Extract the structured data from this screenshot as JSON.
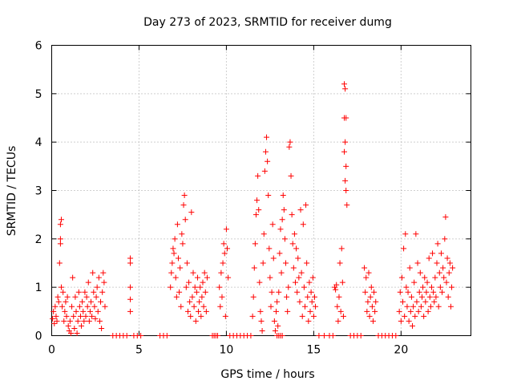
{
  "chart_data": {
    "type": "scatter",
    "title": "Day 273 of 2023, SRMTID for receiver dumg",
    "xlabel": "GPS time / hours",
    "ylabel": "SRMTID / TECUs",
    "xlim": [
      0,
      24
    ],
    "ylim": [
      0,
      6
    ],
    "xticks": [
      0,
      5,
      10,
      15,
      20
    ],
    "xtick_labels": [
      "0",
      "5",
      "10",
      "15",
      "20"
    ],
    "yticks": [
      0,
      1,
      2,
      3,
      4,
      5,
      6
    ],
    "ytick_labels": [
      "0",
      "1",
      "2",
      "3",
      "4",
      "5",
      "6"
    ],
    "grid": true,
    "marker": "plus",
    "series": [
      {
        "name": "SRMTID",
        "color": "#ff0000",
        "points": [
          [
            0.05,
            0.35
          ],
          [
            0.1,
            0.5
          ],
          [
            0.15,
            0.25
          ],
          [
            0.2,
            0.6
          ],
          [
            0.25,
            0.4
          ],
          [
            0.3,
            0.3
          ],
          [
            0.35,
            0.8
          ],
          [
            0.4,
            0.7
          ],
          [
            0.45,
            1.5
          ],
          [
            0.5,
            2.0
          ],
          [
            0.5,
            1.9
          ],
          [
            0.5,
            2.3
          ],
          [
            0.55,
            2.4
          ],
          [
            0.55,
            1.0
          ],
          [
            0.6,
            0.6
          ],
          [
            0.65,
            0.9
          ],
          [
            0.7,
            0.3
          ],
          [
            0.75,
            0.5
          ],
          [
            0.8,
            0.7
          ],
          [
            0.85,
            0.4
          ],
          [
            0.9,
            0.8
          ],
          [
            0.95,
            0.2
          ],
          [
            1.0,
            0.1
          ],
          [
            1.05,
            0.3
          ],
          [
            1.1,
            0.05
          ],
          [
            1.15,
            0.6
          ],
          [
            1.2,
            1.2
          ],
          [
            1.25,
            0.4
          ],
          [
            1.3,
            0.15
          ],
          [
            1.35,
            0.8
          ],
          [
            1.4,
            0.5
          ],
          [
            1.45,
            0.05
          ],
          [
            1.5,
            0.3
          ],
          [
            1.55,
            0.9
          ],
          [
            1.6,
            0.6
          ],
          [
            1.65,
            0.4
          ],
          [
            1.7,
            0.2
          ],
          [
            1.75,
            0.7
          ],
          [
            1.8,
            0.5
          ],
          [
            1.85,
            0.3
          ],
          [
            1.9,
            0.9
          ],
          [
            1.95,
            0.4
          ],
          [
            2.0,
            0.8
          ],
          [
            2.05,
            0.6
          ],
          [
            2.1,
            1.1
          ],
          [
            2.15,
            0.3
          ],
          [
            2.2,
            0.5
          ],
          [
            2.25,
            0.7
          ],
          [
            2.3,
            0.4
          ],
          [
            2.35,
            1.3
          ],
          [
            2.4,
            0.9
          ],
          [
            2.45,
            0.6
          ],
          [
            2.5,
            0.35
          ],
          [
            2.55,
            0.8
          ],
          [
            2.6,
            1.0
          ],
          [
            2.65,
            0.5
          ],
          [
            2.7,
            1.2
          ],
          [
            2.75,
            0.3
          ],
          [
            2.8,
            0.7
          ],
          [
            2.85,
            0.15
          ],
          [
            2.9,
            0.9
          ],
          [
            2.95,
            1.3
          ],
          [
            3.0,
            1.1
          ],
          [
            3.05,
            0.6
          ],
          [
            4.5,
            1.6
          ],
          [
            4.5,
            1.5
          ],
          [
            4.5,
            1.0
          ],
          [
            4.5,
            0.75
          ],
          [
            4.5,
            0.5
          ],
          [
            6.8,
            1.0
          ],
          [
            6.85,
            1.3
          ],
          [
            6.9,
            1.5
          ],
          [
            6.95,
            1.8
          ],
          [
            7.0,
            1.7
          ],
          [
            7.05,
            2.0
          ],
          [
            7.1,
            1.2
          ],
          [
            7.15,
            0.8
          ],
          [
            7.2,
            2.3
          ],
          [
            7.25,
            1.6
          ],
          [
            7.3,
            0.9
          ],
          [
            7.35,
            1.4
          ],
          [
            7.4,
            0.6
          ],
          [
            7.45,
            2.1
          ],
          [
            7.5,
            1.9
          ],
          [
            7.55,
            2.7
          ],
          [
            7.6,
            2.9
          ],
          [
            7.65,
            2.4
          ],
          [
            7.7,
            1.0
          ],
          [
            7.75,
            1.5
          ],
          [
            7.8,
            0.5
          ],
          [
            7.85,
            1.1
          ],
          [
            7.9,
            0.7
          ],
          [
            7.95,
            0.4
          ],
          [
            8.0,
            2.55
          ],
          [
            8.05,
            0.8
          ],
          [
            8.1,
            1.3
          ],
          [
            8.15,
            0.6
          ],
          [
            8.2,
            1.0
          ],
          [
            8.25,
            0.3
          ],
          [
            8.3,
            0.9
          ],
          [
            8.35,
            1.2
          ],
          [
            8.4,
            0.5
          ],
          [
            8.45,
            0.7
          ],
          [
            8.5,
            1.0
          ],
          [
            8.55,
            0.4
          ],
          [
            8.6,
            0.8
          ],
          [
            8.65,
            1.1
          ],
          [
            8.7,
            0.6
          ],
          [
            8.75,
            1.3
          ],
          [
            8.8,
            0.9
          ],
          [
            8.85,
            0.5
          ],
          [
            8.9,
            1.2
          ],
          [
            9.6,
            1.0
          ],
          [
            9.65,
            0.6
          ],
          [
            9.7,
            1.3
          ],
          [
            9.75,
            0.8
          ],
          [
            9.8,
            1.5
          ],
          [
            9.85,
            1.9
          ],
          [
            9.9,
            1.7
          ],
          [
            9.95,
            0.4
          ],
          [
            10.0,
            2.2
          ],
          [
            10.05,
            1.8
          ],
          [
            10.1,
            1.2
          ],
          [
            11.5,
            0.4
          ],
          [
            11.55,
            0.8
          ],
          [
            11.6,
            1.4
          ],
          [
            11.65,
            1.9
          ],
          [
            11.7,
            2.5
          ],
          [
            11.75,
            2.8
          ],
          [
            11.8,
            3.3
          ],
          [
            11.85,
            2.6
          ],
          [
            11.9,
            1.1
          ],
          [
            11.95,
            0.5
          ],
          [
            12.0,
            0.3
          ],
          [
            12.05,
            0.1
          ],
          [
            12.1,
            1.5
          ],
          [
            12.15,
            2.1
          ],
          [
            12.2,
            3.4
          ],
          [
            12.25,
            3.8
          ],
          [
            12.3,
            4.1
          ],
          [
            12.35,
            3.6
          ],
          [
            12.4,
            2.9
          ],
          [
            12.45,
            1.8
          ],
          [
            12.5,
            1.2
          ],
          [
            12.55,
            0.6
          ],
          [
            12.6,
            0.9
          ],
          [
            12.65,
            2.3
          ],
          [
            12.7,
            1.6
          ],
          [
            12.75,
            0.3
          ],
          [
            12.8,
            0.1
          ],
          [
            12.85,
            0.5
          ],
          [
            12.9,
            0.7
          ],
          [
            12.95,
            0.2
          ],
          [
            13.0,
            0.9
          ],
          [
            13.05,
            1.7
          ],
          [
            13.1,
            2.2
          ],
          [
            13.15,
            1.3
          ],
          [
            13.2,
            2.4
          ],
          [
            13.25,
            2.9
          ],
          [
            13.3,
            2.6
          ],
          [
            13.35,
            2.0
          ],
          [
            13.4,
            1.5
          ],
          [
            13.45,
            0.8
          ],
          [
            13.5,
            0.5
          ],
          [
            13.55,
            1.0
          ],
          [
            13.6,
            3.9
          ],
          [
            13.65,
            4.0
          ],
          [
            13.7,
            3.3
          ],
          [
            13.75,
            2.5
          ],
          [
            13.8,
            1.9
          ],
          [
            13.85,
            1.4
          ],
          [
            13.9,
            2.1
          ],
          [
            13.95,
            1.1
          ],
          [
            14.0,
            1.8
          ],
          [
            14.05,
            0.9
          ],
          [
            14.1,
            1.6
          ],
          [
            14.15,
            1.2
          ],
          [
            14.2,
            0.7
          ],
          [
            14.25,
            2.6
          ],
          [
            14.3,
            1.3
          ],
          [
            14.35,
            0.4
          ],
          [
            14.4,
            2.3
          ],
          [
            14.45,
            1.0
          ],
          [
            14.5,
            0.6
          ],
          [
            14.55,
            2.7
          ],
          [
            14.6,
            1.5
          ],
          [
            14.65,
            0.8
          ],
          [
            14.7,
            0.3
          ],
          [
            14.75,
            1.1
          ],
          [
            14.8,
            0.5
          ],
          [
            14.85,
            0.9
          ],
          [
            14.9,
            0.7
          ],
          [
            14.95,
            1.2
          ],
          [
            15.0,
            0.4
          ],
          [
            15.05,
            0.8
          ],
          [
            15.1,
            0.6
          ],
          [
            16.2,
            1.0
          ],
          [
            16.25,
            0.95
          ],
          [
            16.3,
            1.05
          ],
          [
            16.35,
            0.6
          ],
          [
            16.4,
            0.3
          ],
          [
            16.45,
            0.8
          ],
          [
            16.5,
            1.5
          ],
          [
            16.55,
            0.5
          ],
          [
            16.6,
            1.8
          ],
          [
            16.65,
            1.1
          ],
          [
            16.7,
            0.4
          ],
          [
            16.75,
            3.8
          ],
          [
            16.75,
            4.5
          ],
          [
            16.75,
            5.2
          ],
          [
            16.8,
            5.1
          ],
          [
            16.8,
            4.0
          ],
          [
            16.85,
            4.5
          ],
          [
            16.85,
            3.5
          ],
          [
            16.8,
            3.2
          ],
          [
            16.85,
            3.0
          ],
          [
            16.9,
            2.7
          ],
          [
            17.9,
            1.4
          ],
          [
            17.95,
            0.9
          ],
          [
            18.0,
            1.2
          ],
          [
            18.05,
            0.5
          ],
          [
            18.1,
            0.7
          ],
          [
            18.15,
            1.3
          ],
          [
            18.2,
            0.4
          ],
          [
            18.25,
            0.8
          ],
          [
            18.3,
            1.0
          ],
          [
            18.35,
            0.6
          ],
          [
            18.4,
            0.3
          ],
          [
            18.45,
            0.9
          ],
          [
            18.5,
            0.5
          ],
          [
            18.55,
            0.7
          ],
          [
            19.9,
            0.5
          ],
          [
            19.95,
            0.9
          ],
          [
            20.0,
            0.3
          ],
          [
            20.05,
            1.2
          ],
          [
            20.1,
            0.7
          ],
          [
            20.15,
            1.8
          ],
          [
            20.2,
            0.4
          ],
          [
            20.25,
            2.1
          ],
          [
            20.3,
            1.0
          ],
          [
            20.35,
            0.6
          ],
          [
            20.4,
            0.9
          ],
          [
            20.45,
            0.3
          ],
          [
            20.5,
            1.4
          ],
          [
            20.55,
            0.5
          ],
          [
            20.6,
            0.8
          ],
          [
            20.65,
            0.2
          ],
          [
            20.7,
            0.6
          ],
          [
            20.75,
            1.1
          ],
          [
            20.8,
            0.4
          ],
          [
            20.85,
            2.1
          ],
          [
            20.9,
            0.7
          ],
          [
            20.95,
            1.5
          ],
          [
            21.0,
            0.5
          ],
          [
            21.05,
            0.9
          ],
          [
            21.1,
            1.3
          ],
          [
            21.15,
            0.6
          ],
          [
            21.2,
            0.8
          ],
          [
            21.25,
            1.0
          ],
          [
            21.3,
            0.4
          ],
          [
            21.35,
            1.2
          ],
          [
            21.4,
            0.7
          ],
          [
            21.45,
            0.9
          ],
          [
            21.5,
            1.1
          ],
          [
            21.55,
            0.5
          ],
          [
            21.6,
            1.6
          ],
          [
            21.65,
            0.8
          ],
          [
            21.7,
            0.6
          ],
          [
            21.75,
            1.0
          ],
          [
            21.8,
            1.7
          ],
          [
            21.85,
            0.9
          ],
          [
            21.9,
            0.7
          ],
          [
            21.95,
            1.2
          ],
          [
            22.0,
            0.8
          ],
          [
            22.05,
            1.5
          ],
          [
            22.1,
            1.9
          ],
          [
            22.15,
            0.6
          ],
          [
            22.2,
            1.3
          ],
          [
            22.25,
            1.0
          ],
          [
            22.3,
            1.7
          ],
          [
            22.35,
            0.9
          ],
          [
            22.4,
            1.4
          ],
          [
            22.45,
            1.2
          ],
          [
            22.5,
            2.0
          ],
          [
            22.55,
            2.45
          ],
          [
            22.6,
            1.1
          ],
          [
            22.65,
            1.6
          ],
          [
            22.7,
            0.8
          ],
          [
            22.75,
            1.3
          ],
          [
            22.8,
            1.5
          ],
          [
            22.85,
            0.6
          ],
          [
            22.9,
            1.0
          ],
          [
            22.95,
            1.4
          ]
        ]
      }
    ],
    "zero_points_x": [
      3.5,
      3.7,
      3.9,
      4.1,
      4.3,
      4.7,
      4.9,
      5.1,
      6.2,
      6.4,
      6.6,
      9.2,
      9.3,
      9.4,
      9.5,
      10.2,
      10.4,
      10.6,
      10.8,
      11.0,
      11.2,
      11.4,
      12.9,
      13.0,
      13.1,
      13.2,
      15.3,
      15.6,
      15.9,
      16.1,
      17.1,
      17.3,
      17.5,
      17.7,
      18.7,
      18.9,
      19.1,
      19.3,
      19.5,
      19.7
    ]
  }
}
